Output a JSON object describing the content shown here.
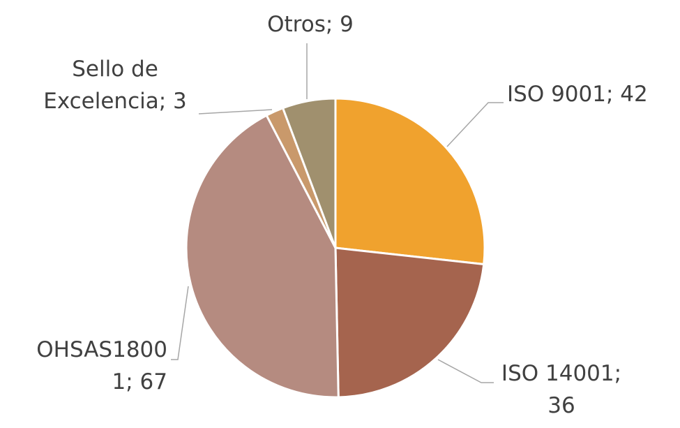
{
  "chart_data": {
    "type": "pie",
    "values": [
      42,
      36,
      67,
      3,
      9
    ],
    "value_labels": [
      "ISO 9001; 42",
      "ISO 14001;\n36",
      "OHSAS1800\n1; 67",
      "Sello de\nExcelencia; 3",
      "Otros; 9"
    ],
    "colors": [
      "#F0A22E",
      "#A5644E",
      "#B58B80",
      "#C9996B",
      "#A0906E"
    ]
  }
}
